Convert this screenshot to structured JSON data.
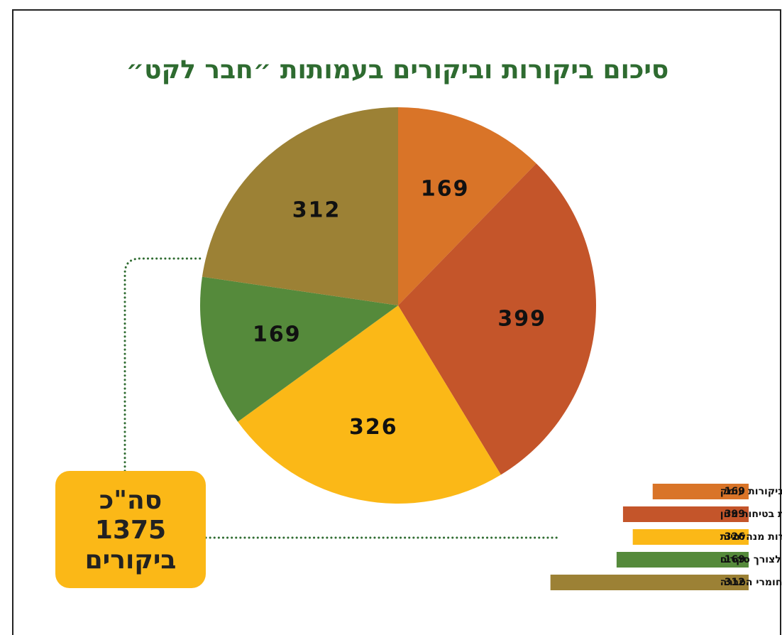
{
  "chart_data": {
    "type": "pie",
    "title": "סיכום ביקורות וביקורים בעמותות ״חבר לקט״",
    "categories": [
      "ביקורות עומק",
      "ביקורות בטיחות מזון",
      "ביקורות מנהלתיות",
      "ביקורים לצורך סקרים",
      "ביקורים לצורך חלוקת חומרי הסברה"
    ],
    "values": [
      169,
      399,
      326,
      169,
      312
    ],
    "colors": [
      "#D97428",
      "#C4552A",
      "#FBB817",
      "#558A3B",
      "#9C8135"
    ],
    "total_label": "סה\"כ",
    "total": 1375,
    "total_unit": "ביקורים"
  }
}
